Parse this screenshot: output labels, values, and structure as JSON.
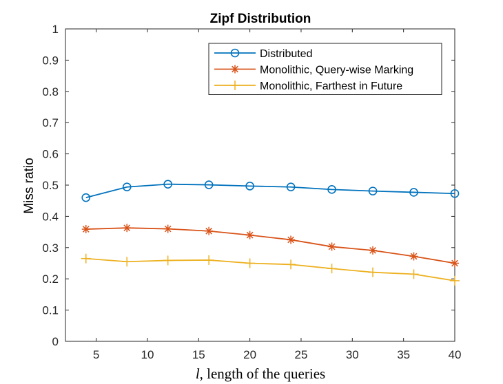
{
  "chart_data": {
    "type": "line",
    "title": "Zipf Distribution",
    "xlabel_italic": "l",
    "xlabel_rest": ", length of the queries",
    "ylabel": "Miss ratio",
    "xlim": [
      2,
      40
    ],
    "ylim": [
      0,
      1
    ],
    "xticks": [
      5,
      10,
      15,
      20,
      25,
      30,
      35,
      40
    ],
    "yticks": [
      0,
      0.1,
      0.2,
      0.3,
      0.4,
      0.5,
      0.6,
      0.7,
      0.8,
      0.9,
      1
    ],
    "ytick_labels": [
      "0",
      "0.1",
      "0.2",
      "0.3",
      "0.4",
      "0.5",
      "0.6",
      "0.7",
      "0.8",
      "0.9",
      "1"
    ],
    "x": [
      4,
      8,
      12,
      16,
      20,
      24,
      28,
      32,
      36,
      40
    ],
    "legend_position": "top-right",
    "series": [
      {
        "name": "Distributed",
        "color": "#0072BD",
        "marker": "circle",
        "values": [
          0.46,
          0.494,
          0.503,
          0.501,
          0.497,
          0.494,
          0.486,
          0.481,
          0.477,
          0.473
        ]
      },
      {
        "name": "Monolithic, Query-wise Marking",
        "color": "#D95319",
        "marker": "asterisk",
        "values": [
          0.359,
          0.363,
          0.36,
          0.353,
          0.34,
          0.325,
          0.303,
          0.291,
          0.272,
          0.25
        ]
      },
      {
        "name": "Monolithic, Farthest in Future",
        "color": "#EDB120",
        "marker": "plus",
        "values": [
          0.265,
          0.255,
          0.259,
          0.26,
          0.25,
          0.246,
          0.233,
          0.221,
          0.215,
          0.194
        ]
      }
    ]
  }
}
